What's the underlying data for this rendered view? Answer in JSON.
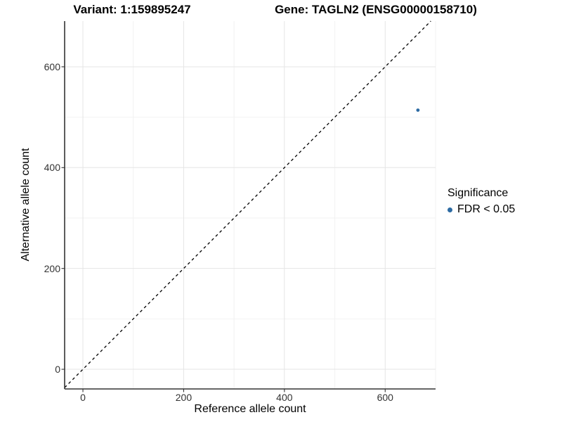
{
  "chart_data": {
    "type": "scatter",
    "title_left": "Variant: 1:159895247",
    "title_right": "Gene: TAGLN2 (ENSG00000158710)",
    "xlabel": "Reference allele count",
    "ylabel": "Alternative allele count",
    "points": [
      {
        "x": 665,
        "y": 514,
        "series": "FDR < 0.05"
      }
    ],
    "reference_line": {
      "equation": "y = x",
      "style": "dashed",
      "color": "#000000"
    },
    "x_ticks": [
      0,
      200,
      400,
      600
    ],
    "y_ticks": [
      0,
      200,
      400,
      600
    ],
    "x_minor_ticks": [
      100,
      300,
      500,
      700
    ],
    "y_minor_ticks": [
      100,
      300,
      500
    ],
    "xlim": [
      -36.3,
      700
    ],
    "ylim": [
      -39,
      690.6
    ],
    "grid": "major+minor",
    "colors": {
      "point": "#2d6ba3",
      "grid_major": "#e5e5e5",
      "grid_minor": "#f2f2f2",
      "axis": "#333333"
    },
    "legend": {
      "title": "Significance",
      "position": "right",
      "entries": [
        {
          "label": "FDR < 0.05",
          "color": "#2d6ba3"
        }
      ]
    }
  }
}
